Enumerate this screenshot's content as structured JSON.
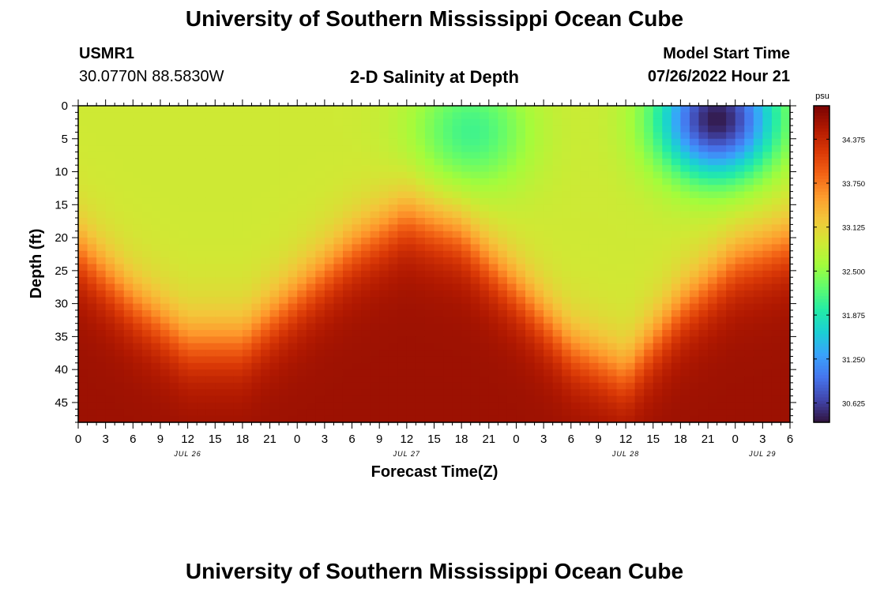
{
  "page": {
    "title": "University of Southern Mississippi Ocean Cube",
    "footer_title": "University of Southern Mississippi Ocean Cube",
    "station": "USMR1",
    "coords": "30.0770N  88.5830W",
    "subtitle": "2-D Salinity at Depth",
    "model_start_label": "Model Start Time",
    "model_start_value": "07/26/2022 Hour 21"
  },
  "chart_data": {
    "type": "heatmap",
    "title": "2-D Salinity at Depth",
    "xlabel": "Forecast Time(Z)",
    "ylabel": "Depth (ft)",
    "x_tick_labels": [
      "0",
      "3",
      "6",
      "9",
      "12",
      "15",
      "18",
      "21",
      "0",
      "3",
      "6",
      "9",
      "12",
      "15",
      "18",
      "21",
      "0",
      "3",
      "6",
      "9",
      "12",
      "15",
      "18",
      "21",
      "0",
      "3",
      "6"
    ],
    "date_labels": [
      {
        "label": "JUL 26",
        "hour": 12
      },
      {
        "label": "JUL 27",
        "hour": 36
      },
      {
        "label": "JUL 28",
        "hour": 60
      },
      {
        "label": "JUL 29",
        "hour": 75
      }
    ],
    "xlim_hours": [
      0,
      78
    ],
    "y_ticks": [
      0,
      5,
      10,
      15,
      20,
      25,
      30,
      35,
      40,
      45
    ],
    "ylim": [
      0,
      48
    ],
    "colorbar": {
      "unit": "psu",
      "ticks": [
        "34.375",
        "33.750",
        "33.125",
        "32.500",
        "31.875",
        "31.250",
        "30.625"
      ],
      "range": [
        30.35,
        34.85
      ],
      "colors": [
        "#30123b",
        "#4145ab",
        "#4675ed",
        "#39a2fc",
        "#1bcfd4",
        "#24eca6",
        "#61fc6c",
        "#a4fc3b",
        "#d1e834",
        "#f3c63a",
        "#fe9b2d",
        "#f36315",
        "#d93806",
        "#b11901",
        "#7a0403"
      ]
    },
    "halocline_depth_ft": [
      {
        "hour": 0,
        "depth": 22
      },
      {
        "hour": 6,
        "depth": 30
      },
      {
        "hour": 12,
        "depth": 36
      },
      {
        "hour": 18,
        "depth": 36
      },
      {
        "hour": 24,
        "depth": 29
      },
      {
        "hour": 30,
        "depth": 22
      },
      {
        "hour": 36,
        "depth": 17
      },
      {
        "hour": 42,
        "depth": 20
      },
      {
        "hour": 48,
        "depth": 28
      },
      {
        "hour": 54,
        "depth": 37
      },
      {
        "hour": 60,
        "depth": 41
      },
      {
        "hour": 66,
        "depth": 31
      },
      {
        "hour": 72,
        "depth": 24
      },
      {
        "hour": 78,
        "depth": 21
      }
    ],
    "surface_fresh_cores": [
      {
        "hour": 43,
        "depth_ft": 4,
        "min_psu": 32.2
      },
      {
        "hour": 70,
        "depth_ft": 2,
        "min_psu": 30.5
      }
    ]
  }
}
